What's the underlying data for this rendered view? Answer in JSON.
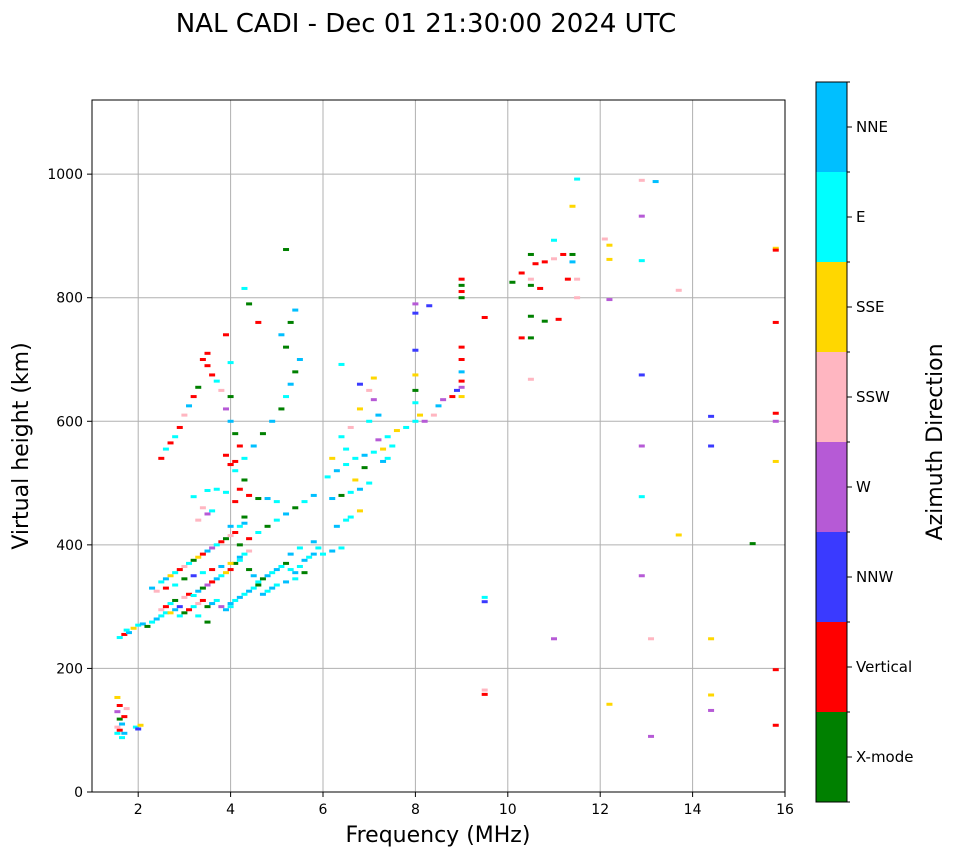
{
  "chart_data": {
    "type": "scatter",
    "title": "NAL CADI - Dec 01 21:30:00 2024 UTC",
    "xlabel": "Frequency (MHz)",
    "ylabel": "Virtual height (km)",
    "xlim": [
      1,
      16
    ],
    "ylim": [
      0,
      1120
    ],
    "xticks": [
      2,
      4,
      6,
      8,
      10,
      12,
      14,
      16
    ],
    "yticks": [
      0,
      200,
      400,
      600,
      800,
      1000
    ],
    "grid": true,
    "colorbar": {
      "label": "Azimuth Direction",
      "categories": [
        {
          "name": "X-mode",
          "color": "#008000"
        },
        {
          "name": "Vertical",
          "color": "#ff0000"
        },
        {
          "name": "NNW",
          "color": "#3a3aff"
        },
        {
          "name": "W",
          "color": "#b65ad6"
        },
        {
          "name": "SSW",
          "color": "#ffb6c1"
        },
        {
          "name": "SSE",
          "color": "#ffd700"
        },
        {
          "name": "E",
          "color": "#00ffff"
        },
        {
          "name": "NNE",
          "color": "#00bfff"
        }
      ]
    },
    "points": [
      [
        1.55,
        95,
        "E"
      ],
      [
        1.6,
        100,
        "Vertical"
      ],
      [
        1.55,
        105,
        "SSW"
      ],
      [
        1.65,
        110,
        "NNE"
      ],
      [
        1.6,
        118,
        "X-mode"
      ],
      [
        1.7,
        122,
        "Vertical"
      ],
      [
        1.55,
        130,
        "W"
      ],
      [
        1.6,
        140,
        "Vertical"
      ],
      [
        1.55,
        153,
        "SSE"
      ],
      [
        1.7,
        95,
        "NNE"
      ],
      [
        1.65,
        88,
        "E"
      ],
      [
        1.75,
        135,
        "SSW"
      ],
      [
        1.95,
        105,
        "E"
      ],
      [
        2.05,
        108,
        "SSE"
      ],
      [
        2.0,
        102,
        "NNW"
      ],
      [
        1.6,
        250,
        "E"
      ],
      [
        1.7,
        255,
        "Vertical"
      ],
      [
        1.8,
        258,
        "NNE"
      ],
      [
        1.75,
        262,
        "E"
      ],
      [
        1.9,
        265,
        "SSE"
      ],
      [
        2.0,
        270,
        "E"
      ],
      [
        2.1,
        272,
        "NNE"
      ],
      [
        2.2,
        268,
        "X-mode"
      ],
      [
        2.3,
        275,
        "E"
      ],
      [
        2.4,
        280,
        "NNE"
      ],
      [
        2.5,
        285,
        "E"
      ],
      [
        2.5,
        295,
        "SSW"
      ],
      [
        2.6,
        300,
        "Vertical"
      ],
      [
        2.7,
        305,
        "E"
      ],
      [
        2.8,
        310,
        "X-mode"
      ],
      [
        2.9,
        300,
        "NNW"
      ],
      [
        3.0,
        315,
        "SSW"
      ],
      [
        3.1,
        320,
        "Vertical"
      ],
      [
        3.2,
        318,
        "E"
      ],
      [
        3.3,
        325,
        "NNE"
      ],
      [
        3.4,
        330,
        "X-mode"
      ],
      [
        3.5,
        335,
        "W"
      ],
      [
        3.6,
        340,
        "Vertical"
      ],
      [
        3.7,
        345,
        "NNE"
      ],
      [
        3.8,
        350,
        "E"
      ],
      [
        3.9,
        355,
        "SSE"
      ],
      [
        4.0,
        360,
        "Vertical"
      ],
      [
        4.1,
        370,
        "X-mode"
      ],
      [
        4.2,
        380,
        "NNE"
      ],
      [
        4.3,
        385,
        "E"
      ],
      [
        4.4,
        390,
        "SSW"
      ],
      [
        2.6,
        290,
        "E"
      ],
      [
        2.7,
        290,
        "SSE"
      ],
      [
        2.8,
        295,
        "NNE"
      ],
      [
        2.9,
        285,
        "E"
      ],
      [
        3.0,
        290,
        "X-mode"
      ],
      [
        3.1,
        295,
        "Vertical"
      ],
      [
        3.2,
        300,
        "E"
      ],
      [
        3.3,
        305,
        "SSW"
      ],
      [
        3.4,
        310,
        "Vertical"
      ],
      [
        3.5,
        300,
        "X-mode"
      ],
      [
        3.6,
        305,
        "NNE"
      ],
      [
        3.7,
        310,
        "E"
      ],
      [
        3.8,
        300,
        "W"
      ],
      [
        3.9,
        295,
        "NNE"
      ],
      [
        4.0,
        300,
        "E"
      ],
      [
        3.5,
        275,
        "X-mode"
      ],
      [
        3.3,
        285,
        "E"
      ],
      [
        2.5,
        340,
        "E"
      ],
      [
        2.6,
        345,
        "NNE"
      ],
      [
        2.7,
        350,
        "SSE"
      ],
      [
        2.8,
        355,
        "E"
      ],
      [
        2.9,
        360,
        "Vertical"
      ],
      [
        3.0,
        365,
        "SSW"
      ],
      [
        3.1,
        370,
        "E"
      ],
      [
        3.2,
        375,
        "X-mode"
      ],
      [
        3.3,
        380,
        "SSE"
      ],
      [
        3.4,
        385,
        "Vertical"
      ],
      [
        3.5,
        390,
        "NNE"
      ],
      [
        3.6,
        395,
        "W"
      ],
      [
        3.7,
        400,
        "E"
      ],
      [
        3.8,
        405,
        "Vertical"
      ],
      [
        3.9,
        410,
        "X-mode"
      ],
      [
        4.0,
        415,
        "SSW"
      ],
      [
        4.1,
        420,
        "Vertical"
      ],
      [
        4.2,
        430,
        "E"
      ],
      [
        4.3,
        435,
        "NNE"
      ],
      [
        2.3,
        330,
        "NNE"
      ],
      [
        2.4,
        325,
        "SSW"
      ],
      [
        2.6,
        330,
        "Vertical"
      ],
      [
        2.8,
        335,
        "E"
      ],
      [
        3.0,
        345,
        "X-mode"
      ],
      [
        3.2,
        350,
        "NNW"
      ],
      [
        3.4,
        355,
        "E"
      ],
      [
        3.6,
        360,
        "Vertical"
      ],
      [
        3.8,
        365,
        "NNE"
      ],
      [
        4.0,
        370,
        "SSE"
      ],
      [
        4.2,
        375,
        "E"
      ],
      [
        4.4,
        360,
        "X-mode"
      ],
      [
        4.5,
        350,
        "NNE"
      ],
      [
        4.6,
        340,
        "E"
      ],
      [
        4.7,
        345,
        "X-mode"
      ],
      [
        4.8,
        350,
        "NNE"
      ],
      [
        4.9,
        355,
        "E"
      ],
      [
        5.0,
        360,
        "NNE"
      ],
      [
        5.1,
        365,
        "E"
      ],
      [
        5.2,
        370,
        "X-mode"
      ],
      [
        5.3,
        360,
        "E"
      ],
      [
        5.4,
        355,
        "NNE"
      ],
      [
        5.5,
        365,
        "E"
      ],
      [
        5.6,
        375,
        "NNE"
      ],
      [
        5.7,
        380,
        "E"
      ],
      [
        4.3,
        320,
        "E"
      ],
      [
        4.4,
        325,
        "NNE"
      ],
      [
        4.5,
        330,
        "E"
      ],
      [
        4.6,
        335,
        "X-mode"
      ],
      [
        4.7,
        320,
        "NNE"
      ],
      [
        4.8,
        325,
        "E"
      ],
      [
        4.9,
        330,
        "NNE"
      ],
      [
        5.0,
        335,
        "E"
      ],
      [
        4.2,
        315,
        "NNE"
      ],
      [
        4.1,
        310,
        "E"
      ],
      [
        4.0,
        305,
        "NNE"
      ],
      [
        5.2,
        340,
        "NNE"
      ],
      [
        5.4,
        345,
        "E"
      ],
      [
        5.6,
        355,
        "X-mode"
      ],
      [
        5.8,
        385,
        "NNE"
      ],
      [
        5.9,
        395,
        "E"
      ],
      [
        5.8,
        405,
        "NNE"
      ],
      [
        5.5,
        395,
        "E"
      ],
      [
        5.3,
        385,
        "NNE"
      ],
      [
        4.2,
        400,
        "X-mode"
      ],
      [
        4.4,
        410,
        "Vertical"
      ],
      [
        4.6,
        420,
        "E"
      ],
      [
        4.8,
        430,
        "X-mode"
      ],
      [
        5.0,
        440,
        "E"
      ],
      [
        5.2,
        450,
        "NNE"
      ],
      [
        5.4,
        460,
        "X-mode"
      ],
      [
        5.6,
        470,
        "E"
      ],
      [
        5.8,
        480,
        "NNE"
      ],
      [
        5.0,
        470,
        "E"
      ],
      [
        4.8,
        475,
        "NNE"
      ],
      [
        4.6,
        475,
        "X-mode"
      ],
      [
        4.4,
        480,
        "Vertical"
      ],
      [
        4.2,
        490,
        "Vertical"
      ],
      [
        4.3,
        505,
        "X-mode"
      ],
      [
        4.1,
        520,
        "E"
      ],
      [
        4.0,
        530,
        "Vertical"
      ],
      [
        4.1,
        535,
        "Vertical"
      ],
      [
        4.3,
        540,
        "E"
      ],
      [
        4.5,
        560,
        "NNE"
      ],
      [
        4.7,
        580,
        "X-mode"
      ],
      [
        4.9,
        600,
        "NNE"
      ],
      [
        5.1,
        620,
        "X-mode"
      ],
      [
        5.2,
        640,
        "E"
      ],
      [
        5.3,
        660,
        "NNE"
      ],
      [
        5.4,
        680,
        "X-mode"
      ],
      [
        5.5,
        700,
        "NNE"
      ],
      [
        5.2,
        720,
        "X-mode"
      ],
      [
        5.1,
        740,
        "NNE"
      ],
      [
        5.3,
        760,
        "X-mode"
      ],
      [
        5.4,
        780,
        "NNE"
      ],
      [
        4.6,
        760,
        "Vertical"
      ],
      [
        4.4,
        790,
        "X-mode"
      ],
      [
        4.3,
        815,
        "E"
      ],
      [
        5.2,
        878,
        "X-mode"
      ],
      [
        4.0,
        530,
        "Vertical"
      ],
      [
        3.9,
        545,
        "Vertical"
      ],
      [
        4.2,
        560,
        "Vertical"
      ],
      [
        4.1,
        580,
        "X-mode"
      ],
      [
        4.0,
        600,
        "NNE"
      ],
      [
        3.9,
        620,
        "W"
      ],
      [
        4.0,
        640,
        "X-mode"
      ],
      [
        3.8,
        650,
        "SSW"
      ],
      [
        3.7,
        665,
        "E"
      ],
      [
        3.6,
        675,
        "Vertical"
      ],
      [
        3.5,
        690,
        "Vertical"
      ],
      [
        3.4,
        700,
        "Vertical"
      ],
      [
        3.5,
        710,
        "Vertical"
      ],
      [
        3.9,
        740,
        "Vertical"
      ],
      [
        4.0,
        695,
        "E"
      ],
      [
        3.3,
        655,
        "X-mode"
      ],
      [
        3.2,
        640,
        "Vertical"
      ],
      [
        3.1,
        625,
        "NNE"
      ],
      [
        3.0,
        610,
        "SSW"
      ],
      [
        2.9,
        590,
        "Vertical"
      ],
      [
        2.8,
        575,
        "E"
      ],
      [
        2.7,
        565,
        "Vertical"
      ],
      [
        2.6,
        555,
        "E"
      ],
      [
        2.5,
        540,
        "Vertical"
      ],
      [
        3.5,
        488,
        "E"
      ],
      [
        3.7,
        490,
        "E"
      ],
      [
        3.9,
        485,
        "E"
      ],
      [
        3.2,
        478,
        "E"
      ],
      [
        3.4,
        460,
        "SSW"
      ],
      [
        3.6,
        455,
        "E"
      ],
      [
        3.3,
        440,
        "SSW"
      ],
      [
        3.5,
        450,
        "W"
      ],
      [
        4.1,
        470,
        "Vertical"
      ],
      [
        4.3,
        445,
        "X-mode"
      ],
      [
        4.0,
        430,
        "NNE"
      ],
      [
        6.0,
        385,
        "E"
      ],
      [
        6.2,
        390,
        "NNE"
      ],
      [
        6.4,
        395,
        "E"
      ],
      [
        6.3,
        430,
        "NNE"
      ],
      [
        6.5,
        440,
        "E"
      ],
      [
        6.6,
        445,
        "E"
      ],
      [
        6.8,
        455,
        "SSE"
      ],
      [
        6.2,
        475,
        "NNE"
      ],
      [
        6.4,
        480,
        "X-mode"
      ],
      [
        6.6,
        485,
        "E"
      ],
      [
        6.8,
        490,
        "NNE"
      ],
      [
        7.0,
        500,
        "E"
      ],
      [
        6.7,
        505,
        "SSE"
      ],
      [
        6.1,
        510,
        "E"
      ],
      [
        6.3,
        520,
        "NNE"
      ],
      [
        6.5,
        530,
        "E"
      ],
      [
        6.7,
        540,
        "E"
      ],
      [
        6.9,
        545,
        "NNE"
      ],
      [
        7.1,
        550,
        "E"
      ],
      [
        7.3,
        555,
        "SSE"
      ],
      [
        7.5,
        560,
        "E"
      ],
      [
        7.2,
        570,
        "W"
      ],
      [
        7.4,
        575,
        "E"
      ],
      [
        7.6,
        585,
        "SSE"
      ],
      [
        7.8,
        590,
        "E"
      ],
      [
        7.0,
        600,
        "E"
      ],
      [
        7.2,
        610,
        "NNE"
      ],
      [
        6.8,
        620,
        "SSE"
      ],
      [
        7.1,
        635,
        "W"
      ],
      [
        7.0,
        650,
        "SSW"
      ],
      [
        6.8,
        660,
        "NNW"
      ],
      [
        6.4,
        692,
        "E"
      ],
      [
        7.1,
        670,
        "SSE"
      ],
      [
        6.2,
        540,
        "SSE"
      ],
      [
        6.5,
        555,
        "E"
      ],
      [
        6.9,
        525,
        "X-mode"
      ],
      [
        7.3,
        535,
        "NNE"
      ],
      [
        6.4,
        575,
        "E"
      ],
      [
        6.6,
        590,
        "SSW"
      ],
      [
        7.4,
        540,
        "E"
      ],
      [
        8.0,
        600,
        "E"
      ],
      [
        8.1,
        610,
        "SSE"
      ],
      [
        8.2,
        600,
        "W"
      ],
      [
        8.4,
        610,
        "SSW"
      ],
      [
        8.5,
        625,
        "NNE"
      ],
      [
        8.6,
        635,
        "W"
      ],
      [
        8.8,
        640,
        "Vertical"
      ],
      [
        8.9,
        650,
        "NNW"
      ],
      [
        9.0,
        655,
        "W"
      ],
      [
        9.0,
        665,
        "Vertical"
      ],
      [
        9.0,
        640,
        "SSE"
      ],
      [
        9.0,
        680,
        "NNE"
      ],
      [
        9.0,
        700,
        "Vertical"
      ],
      [
        9.0,
        720,
        "Vertical"
      ],
      [
        8.0,
        675,
        "SSE"
      ],
      [
        8.0,
        715,
        "NNW"
      ],
      [
        8.0,
        650,
        "X-mode"
      ],
      [
        8.0,
        630,
        "E"
      ],
      [
        8.0,
        775,
        "NNW"
      ],
      [
        8.0,
        790,
        "W"
      ],
      [
        8.3,
        787,
        "NNW"
      ],
      [
        9.0,
        800,
        "X-mode"
      ],
      [
        9.0,
        810,
        "Vertical"
      ],
      [
        9.0,
        820,
        "X-mode"
      ],
      [
        9.0,
        830,
        "Vertical"
      ],
      [
        9.5,
        768,
        "Vertical"
      ],
      [
        9.5,
        308,
        "NNW"
      ],
      [
        9.5,
        315,
        "E"
      ],
      [
        9.5,
        165,
        "SSW"
      ],
      [
        9.5,
        158,
        "Vertical"
      ],
      [
        11.0,
        248,
        "W"
      ],
      [
        10.1,
        825,
        "X-mode"
      ],
      [
        10.3,
        840,
        "Vertical"
      ],
      [
        10.5,
        870,
        "X-mode"
      ],
      [
        10.6,
        855,
        "Vertical"
      ],
      [
        10.5,
        830,
        "SSW"
      ],
      [
        10.5,
        820,
        "X-mode"
      ],
      [
        10.7,
        815,
        "Vertical"
      ],
      [
        10.8,
        858,
        "Vertical"
      ],
      [
        11.0,
        863,
        "SSW"
      ],
      [
        11.3,
        830,
        "Vertical"
      ],
      [
        11.2,
        870,
        "Vertical"
      ],
      [
        11.4,
        870,
        "X-mode"
      ],
      [
        11.4,
        858,
        "NNE"
      ],
      [
        11.5,
        830,
        "SSW"
      ],
      [
        11.0,
        893,
        "E"
      ],
      [
        11.4,
        948,
        "SSE"
      ],
      [
        11.5,
        992,
        "E"
      ],
      [
        10.3,
        735,
        "Vertical"
      ],
      [
        10.5,
        735,
        "X-mode"
      ],
      [
        10.5,
        770,
        "X-mode"
      ],
      [
        10.8,
        762,
        "X-mode"
      ],
      [
        11.1,
        765,
        "Vertical"
      ],
      [
        10.5,
        668,
        "SSW"
      ],
      [
        11.5,
        800,
        "SSW"
      ],
      [
        12.1,
        895,
        "SSW"
      ],
      [
        12.2,
        885,
        "SSE"
      ],
      [
        12.2,
        862,
        "SSE"
      ],
      [
        12.2,
        797,
        "W"
      ],
      [
        12.2,
        142,
        "SSE"
      ],
      [
        12.9,
        990,
        "SSW"
      ],
      [
        13.2,
        988,
        "NNE"
      ],
      [
        12.9,
        932,
        "W"
      ],
      [
        12.9,
        860,
        "E"
      ],
      [
        12.9,
        675,
        "NNW"
      ],
      [
        12.9,
        560,
        "W"
      ],
      [
        12.9,
        478,
        "E"
      ],
      [
        12.9,
        350,
        "W"
      ],
      [
        13.1,
        248,
        "SSW"
      ],
      [
        13.1,
        90,
        "W"
      ],
      [
        13.7,
        812,
        "SSW"
      ],
      [
        13.7,
        416,
        "SSE"
      ],
      [
        14.4,
        608,
        "NNW"
      ],
      [
        14.4,
        560,
        "NNW"
      ],
      [
        14.4,
        248,
        "SSE"
      ],
      [
        14.4,
        157,
        "SSE"
      ],
      [
        14.4,
        132,
        "W"
      ],
      [
        15.3,
        402,
        "X-mode"
      ],
      [
        15.8,
        880,
        "SSE"
      ],
      [
        15.8,
        877,
        "Vertical"
      ],
      [
        15.8,
        760,
        "Vertical"
      ],
      [
        15.8,
        613,
        "Vertical"
      ],
      [
        15.8,
        600,
        "W"
      ],
      [
        15.8,
        535,
        "SSE"
      ],
      [
        15.8,
        198,
        "Vertical"
      ],
      [
        15.8,
        108,
        "Vertical"
      ]
    ]
  }
}
